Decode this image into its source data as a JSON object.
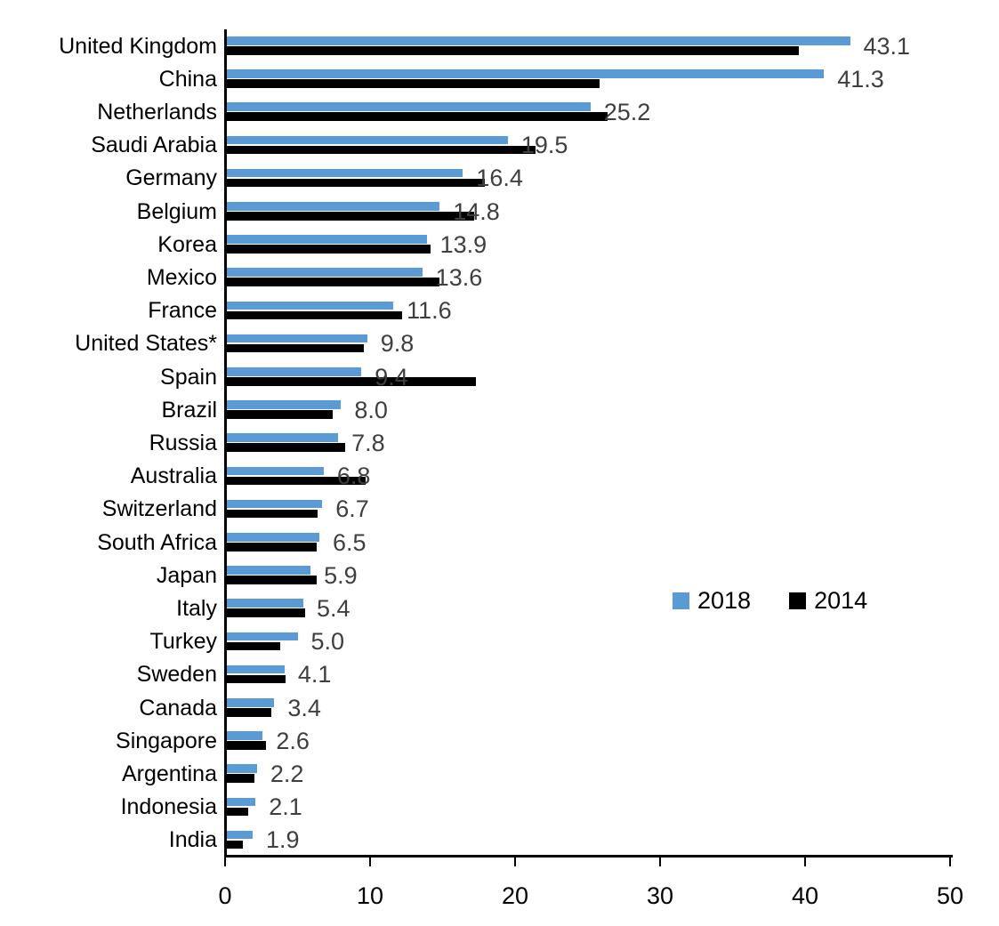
{
  "chart_data": {
    "type": "bar",
    "orientation": "horizontal",
    "title": "",
    "xlabel": "",
    "ylabel": "",
    "xlim": [
      0,
      50
    ],
    "xticks": [
      "0",
      "10",
      "20",
      "30",
      "40",
      "50"
    ],
    "grid": false,
    "legend_position": "middle-right",
    "categories": [
      "United Kingdom",
      "China",
      "Netherlands",
      "Saudi Arabia",
      "Germany",
      "Belgium",
      "Korea",
      "Mexico",
      "France",
      "United States*",
      "Spain",
      "Brazil",
      "Russia",
      "Australia",
      "Switzerland",
      "South Africa",
      "Japan",
      "Italy",
      "Turkey",
      "Sweden",
      "Canada",
      "Singapore",
      "Argentina",
      "Indonesia",
      "India"
    ],
    "series": [
      {
        "name": "2018",
        "color": "#5b9bd5",
        "values": [
          43.1,
          41.3,
          25.2,
          19.5,
          16.4,
          14.8,
          13.9,
          13.6,
          11.6,
          9.8,
          9.4,
          8.0,
          7.8,
          6.8,
          6.7,
          6.5,
          5.9,
          5.4,
          5.0,
          4.1,
          3.4,
          2.6,
          2.2,
          2.1,
          1.9
        ]
      },
      {
        "name": "2014",
        "color": "#000000",
        "values": [
          39.6,
          25.8,
          26.4,
          21.4,
          17.9,
          17.2,
          14.2,
          14.8,
          12.2,
          9.6,
          17.3,
          7.4,
          8.3,
          9.7,
          6.4,
          6.3,
          6.3,
          5.5,
          3.8,
          4.2,
          3.2,
          2.8,
          2.0,
          1.6,
          1.2
        ]
      }
    ],
    "data_labels": [
      "43.1",
      "41.3",
      "25.2",
      "19.5",
      "16.4",
      "14.8",
      "13.9",
      "13.6",
      "11.6",
      "9.8",
      "9.4",
      "8.0",
      "7.8",
      "6.8",
      "6.7",
      "6.5",
      "5.9",
      "5.4",
      "5.0",
      "4.1",
      "3.4",
      "2.6",
      "2.2",
      "2.1",
      "1.9"
    ],
    "data_label_color": "#3f3f3f"
  }
}
